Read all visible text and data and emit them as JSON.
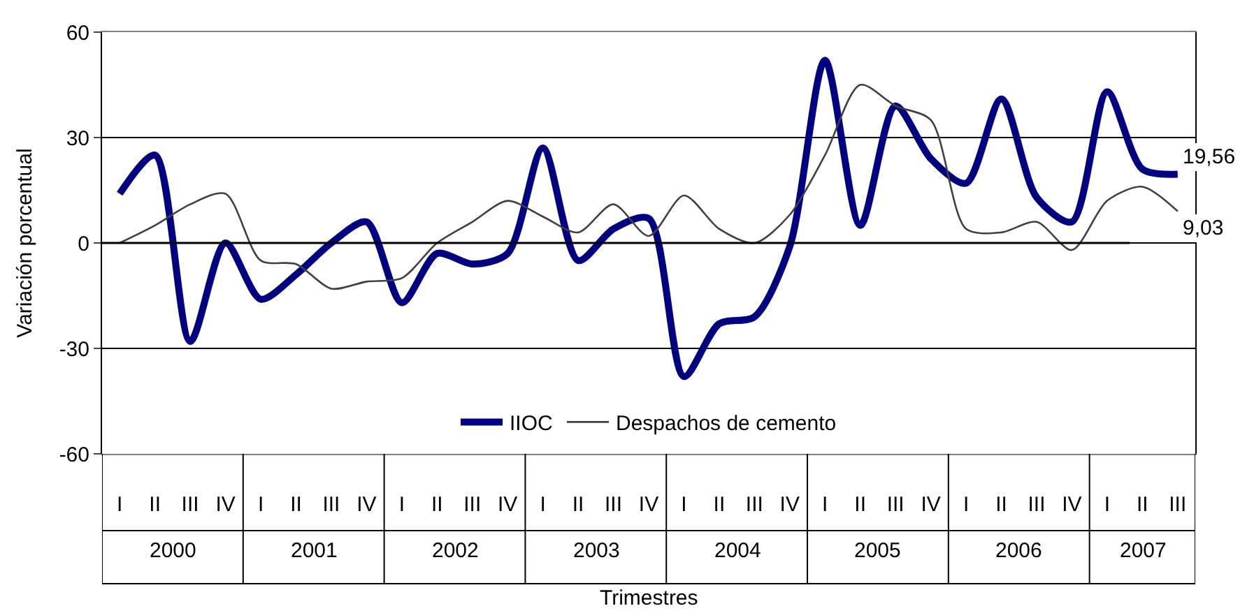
{
  "chart_data": {
    "type": "line",
    "xlabel": "Trimestres",
    "ylabel": "Variación porcentual",
    "categories": [
      "I",
      "II",
      "III",
      "IV",
      "I",
      "II",
      "III",
      "IV",
      "I",
      "II",
      "III",
      "IV",
      "I",
      "II",
      "III",
      "IV",
      "I",
      "II",
      "III",
      "IV",
      "I",
      "II",
      "III",
      "IV",
      "I",
      "II",
      "III",
      "IV",
      "I",
      "II",
      "III"
    ],
    "annotations": [
      "2000",
      "2001",
      "2002",
      "2003",
      "2004",
      "2005",
      "2006",
      "2007"
    ],
    "series": [
      {
        "name": "IIOC",
        "color": "#000080",
        "values": [
          14,
          25,
          -28,
          0,
          -16,
          -9,
          0,
          6,
          -17,
          -3,
          -6,
          -3,
          27,
          -5,
          4,
          7,
          -38,
          -23,
          -21,
          -1,
          52,
          5,
          39,
          24,
          17,
          41,
          13,
          6,
          43,
          21,
          19.56
        ],
        "value_labels": [
          null,
          null,
          null,
          null,
          null,
          null,
          null,
          null,
          null,
          null,
          null,
          null,
          null,
          null,
          null,
          null,
          null,
          null,
          null,
          null,
          null,
          null,
          null,
          null,
          null,
          null,
          null,
          null,
          null,
          null,
          "19,56"
        ]
      },
      {
        "name": "Despachos de cemento",
        "color": "#404040",
        "values": [
          0,
          5,
          11,
          14,
          -5,
          -6,
          -13,
          -11,
          -10,
          0,
          6,
          12,
          7.5,
          3,
          11,
          2,
          13.5,
          4,
          0,
          8,
          25,
          45,
          39,
          35,
          4,
          3,
          6,
          -2,
          12,
          16,
          9.03
        ],
        "value_labels": [
          null,
          null,
          null,
          null,
          null,
          null,
          null,
          null,
          null,
          null,
          null,
          null,
          null,
          null,
          null,
          null,
          null,
          null,
          null,
          null,
          null,
          null,
          null,
          null,
          null,
          null,
          null,
          null,
          null,
          null,
          "9,03"
        ]
      }
    ],
    "ylim": [
      -60,
      60
    ],
    "yticks": [
      -60,
      -30,
      0,
      30,
      60
    ],
    "grid": "y",
    "legend": "bottom",
    "marker": "none",
    "line_style": "solid"
  }
}
